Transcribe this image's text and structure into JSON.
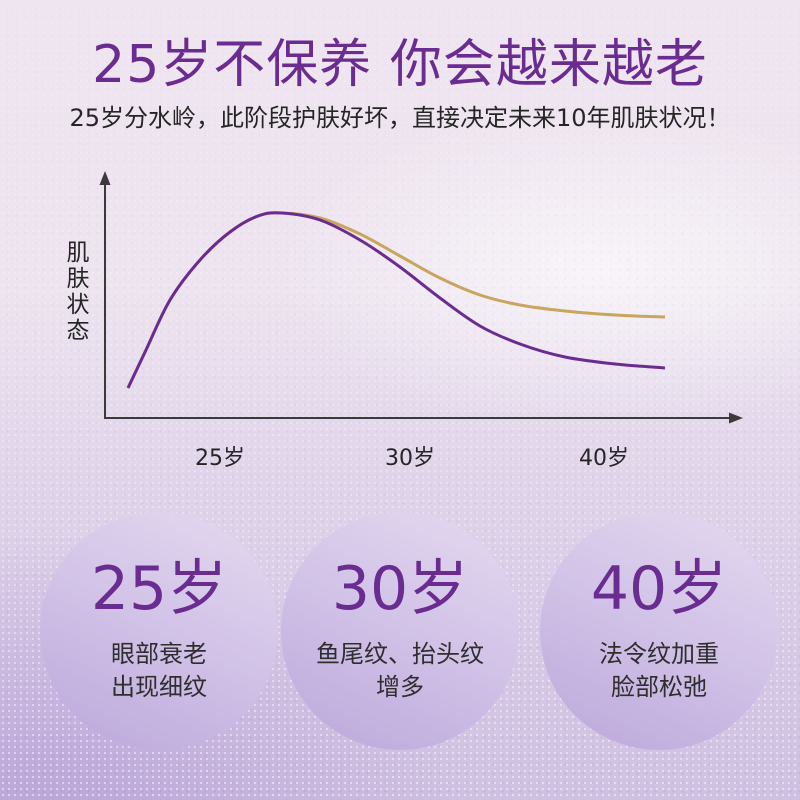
{
  "title": "25岁不保养 你会越来越老",
  "subtitle": "25岁分水岭，此阶段护肤好坏，直接决定未来10年肌肤状况！",
  "chart": {
    "y_label": "肌肤状态",
    "x_ticks": [
      "25岁",
      "30岁",
      "40岁"
    ]
  },
  "stages": [
    {
      "age": "25岁",
      "lines": [
        "眼部衰老",
        "出现细纹"
      ]
    },
    {
      "age": "30岁",
      "lines": [
        "鱼尾纹、抬头纹",
        "增多"
      ]
    },
    {
      "age": "40岁",
      "lines": [
        "法令纹加重",
        "脸部松弛"
      ]
    }
  ],
  "colors": {
    "purple": "#6b2c91",
    "gold": "#c9a55e",
    "axis": "#3a3a3a",
    "text": "#252525"
  }
}
